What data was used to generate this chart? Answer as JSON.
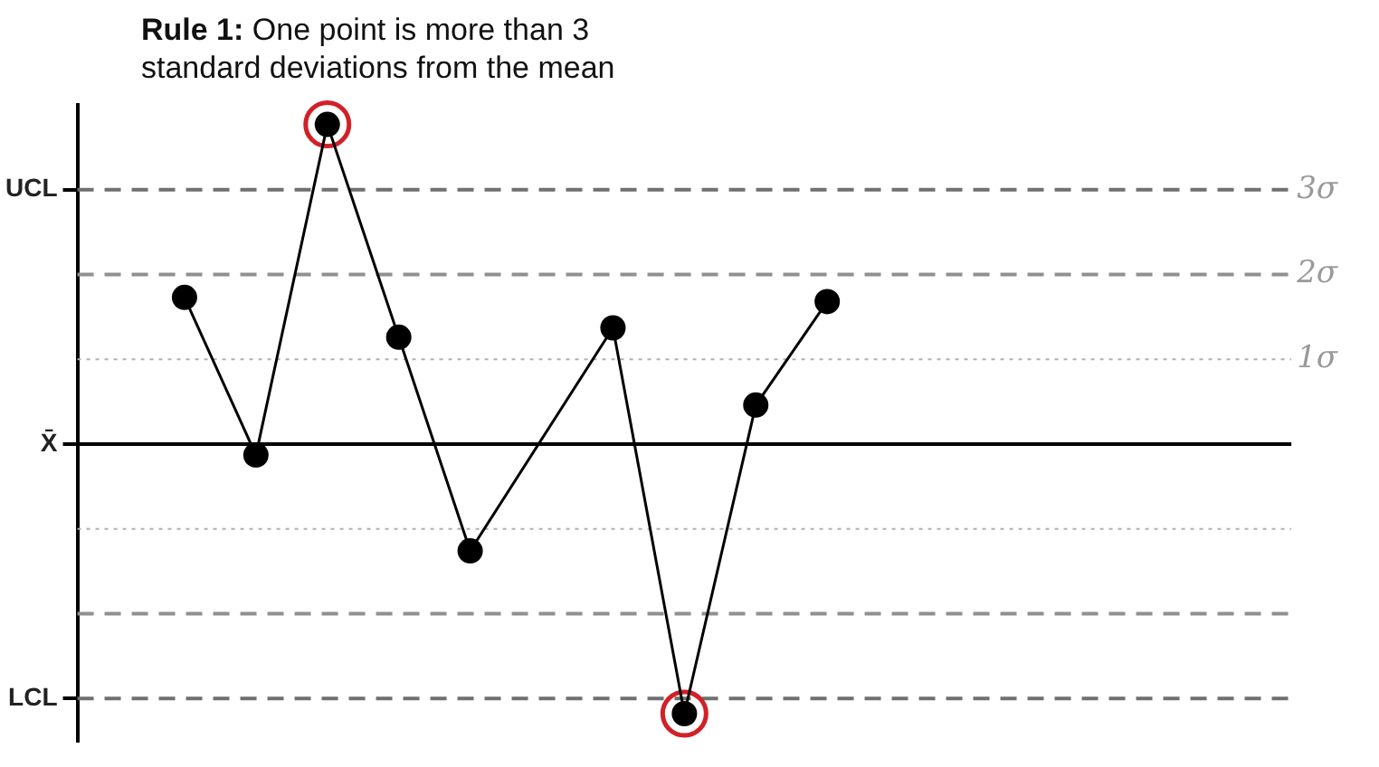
{
  "chart_data": {
    "type": "line",
    "title": "Rule 1: One point is more than 3 standard deviations from the mean",
    "categories": [
      null,
      null,
      null,
      null,
      null,
      null,
      null,
      null,
      null,
      null,
      null,
      null,
      null,
      null,
      null,
      null,
      null
    ],
    "series": [
      {
        "color": "#000000",
        "values": [
          null,
          1.73,
          -0.13,
          3.77,
          1.26,
          -1.26,
          null,
          1.37,
          -3.18,
          0.46,
          1.68,
          null,
          null,
          null,
          null,
          null,
          null
        ]
      },
      {
        "type": "scatter",
        "color": "#d22027",
        "values": [
          null,
          null,
          null,
          3.77,
          null,
          null,
          null,
          null,
          -3.18,
          null,
          null,
          null,
          null,
          null,
          null,
          null,
          null
        ]
      }
    ],
    "ylim": [
      -3.5,
      4.0
    ],
    "yticks": [
      {
        "value": 1,
        "label": "1σ"
      },
      {
        "value": 2,
        "label": "2σ"
      },
      {
        "value": 3,
        "label": "3σ"
      }
    ],
    "ref_lines": [
      {
        "axis": "y",
        "value": 3,
        "label": "UCL",
        "color": "#707070",
        "line_style": "dashed"
      },
      {
        "axis": "y",
        "value": 2,
        "color": "#909090",
        "line_style": "dashed"
      },
      {
        "axis": "y",
        "value": 1,
        "color": "#b0b0b0",
        "line_style": "dotted"
      },
      {
        "axis": "y",
        "value": 0,
        "label": "X̄",
        "color": "#000000",
        "line_style": "solid"
      },
      {
        "axis": "y",
        "value": -1,
        "color": "#b0b0b0",
        "line_style": "dotted"
      },
      {
        "axis": "y",
        "value": -2,
        "color": "#909090",
        "line_style": "dashed"
      },
      {
        "axis": "y",
        "value": -3,
        "label": "LCL",
        "color": "#707070",
        "line_style": "dashed"
      }
    ],
    "grid": false,
    "legend": false,
    "marker": "circle",
    "tick_labels": "y"
  }
}
